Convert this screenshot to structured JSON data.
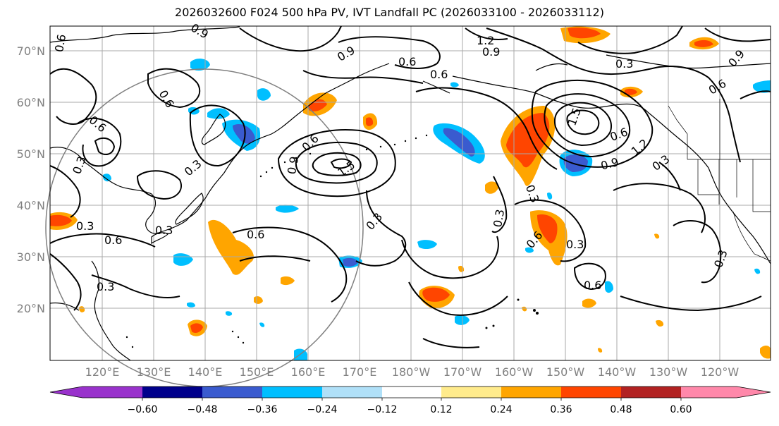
{
  "title": "2026032600 F024 500 hPa PV, IVT Landfall PC (2026033100 - 2026033112)",
  "latitude_labels": [
    "70°N",
    "60°N",
    "50°N",
    "40°N",
    "30°N",
    "20°N"
  ],
  "longitude_labels": [
    "120°E",
    "130°E",
    "140°E",
    "150°E",
    "160°E",
    "170°E",
    "180°W",
    "170°W",
    "160°W",
    "150°W",
    "140°W",
    "130°W",
    "120°W"
  ],
  "contour_labels": [
    "0.3",
    "0.6",
    "0.9",
    "1.2",
    "1.5"
  ],
  "colorbar": {
    "ticks": [
      "−0.60",
      "−0.48",
      "−0.36",
      "−0.24",
      "−0.12",
      "0.12",
      "0.24",
      "0.36",
      "0.48",
      "0.60"
    ],
    "colors": [
      "#9932cc",
      "#00008b",
      "#3a5bcf",
      "#00bfff",
      "#b0e0f8",
      "#ffffff",
      "#ffeb8c",
      "#ffa500",
      "#ff4500",
      "#b22222",
      "#ff88aa"
    ]
  },
  "colors": {
    "positive_strong": "#ff4500",
    "positive": "#ffa500",
    "positive_weak": "#ffeb8c",
    "negative_weak": "#b0e0f8",
    "negative": "#00bfff",
    "negative_strong": "#3a5bcf",
    "contour": "#000000",
    "grid": "#a9a9a9",
    "range_circle": "#808080"
  }
}
